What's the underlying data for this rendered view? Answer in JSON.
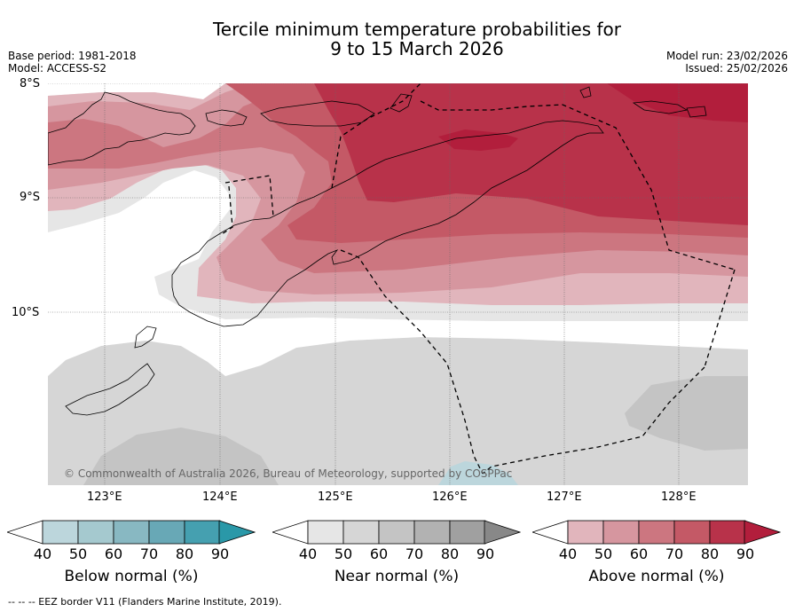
{
  "title": {
    "line1": "Tercile minimum temperature probabilities for",
    "line2": "9 to 15 March 2026"
  },
  "meta": {
    "base_period": "Base period: 1981-2018",
    "model": "Model: ACCESS-S2",
    "model_run": "Model run: 23/02/2026",
    "issued": "Issued: 25/02/2026"
  },
  "map": {
    "lat_labels": [
      "8°S",
      "9°S",
      "10°S"
    ],
    "lon_labels": [
      "123°E",
      "124°E",
      "125°E",
      "126°E",
      "127°E",
      "128°E"
    ],
    "copyright": "© Commonwealth of Australia 2026, Bureau of Meteorology, supported by COSPPac"
  },
  "colorbars": [
    {
      "name": "below-normal",
      "label": "Below normal (%)",
      "ticks": [
        "40",
        "50",
        "60",
        "70",
        "80",
        "90"
      ],
      "colors": [
        "#bcd6dc",
        "#a5c9cf",
        "#88b8c2",
        "#68a8b6",
        "#45a0b0",
        "#2a98a8"
      ]
    },
    {
      "name": "near-normal",
      "label": "Near normal (%)",
      "ticks": [
        "40",
        "50",
        "60",
        "70",
        "80",
        "90"
      ],
      "colors": [
        "#e6e6e6",
        "#d6d6d6",
        "#c4c4c4",
        "#b2b2b2",
        "#a0a0a0",
        "#888888"
      ]
    },
    {
      "name": "above-normal",
      "label": "Above normal (%)",
      "ticks": [
        "40",
        "50",
        "60",
        "70",
        "80",
        "90"
      ],
      "colors": [
        "#e1b5bc",
        "#d6969f",
        "#cc7680",
        "#c45966",
        "#b8324a",
        "#b21e3c"
      ]
    }
  ],
  "footer": "--  --  -- EEZ border V11 (Flanders Marine Institute, 2019)."
}
